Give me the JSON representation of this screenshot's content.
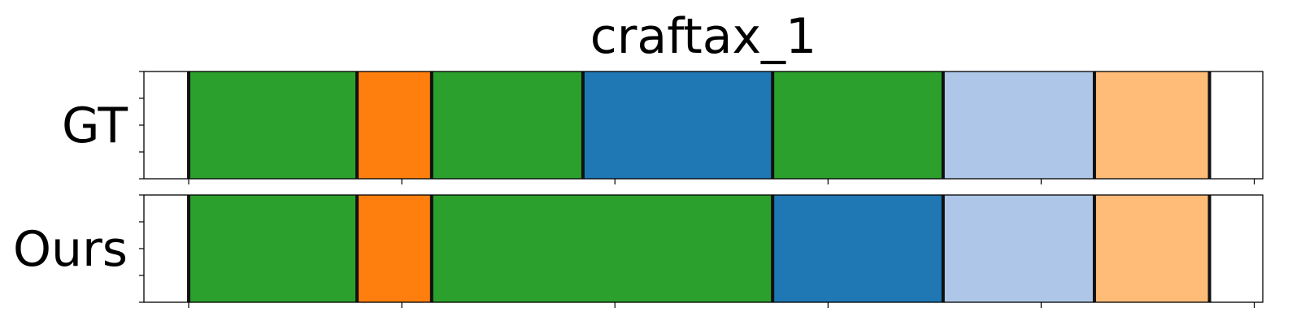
{
  "chart_data": {
    "type": "bar",
    "orientation": "horizontal-segments",
    "title": "craftax_1",
    "rows": [
      {
        "label": "GT",
        "segments": [
          {
            "start": 0.0,
            "end": 0.21,
            "color": "#ffffff"
          },
          {
            "start": 0.21,
            "end": 1.0,
            "color": "#2ca02c"
          },
          {
            "start": 1.0,
            "end": 1.35,
            "color": "#ff7f0e"
          },
          {
            "start": 1.35,
            "end": 2.06,
            "color": "#2ca02c"
          },
          {
            "start": 2.06,
            "end": 2.95,
            "color": "#1f77b4"
          },
          {
            "start": 2.95,
            "end": 3.75,
            "color": "#2ca02c"
          },
          {
            "start": 3.75,
            "end": 4.46,
            "color": "#aec7e8"
          },
          {
            "start": 4.46,
            "end": 5.0,
            "color": "#ffbb78"
          },
          {
            "start": 5.0,
            "end": 5.25,
            "color": "#ffffff"
          }
        ]
      },
      {
        "label": "Ours",
        "segments": [
          {
            "start": 0.0,
            "end": 0.21,
            "color": "#ffffff"
          },
          {
            "start": 0.21,
            "end": 1.0,
            "color": "#2ca02c"
          },
          {
            "start": 1.0,
            "end": 1.35,
            "color": "#ff7f0e"
          },
          {
            "start": 1.35,
            "end": 2.95,
            "color": "#2ca02c"
          },
          {
            "start": 2.95,
            "end": 3.75,
            "color": "#1f77b4"
          },
          {
            "start": 3.75,
            "end": 4.46,
            "color": "#aec7e8"
          },
          {
            "start": 4.46,
            "end": 5.0,
            "color": "#ffbb78"
          },
          {
            "start": 5.0,
            "end": 5.25,
            "color": "#ffffff"
          }
        ]
      }
    ],
    "xlim": [
      0,
      5.25
    ],
    "x_ticks": [
      0.21,
      1.21,
      2.21,
      3.21,
      4.21,
      5.21
    ],
    "x_tick_labels_shown": false,
    "y_ticks_count": 5,
    "y_tick_labels_shown": false,
    "boundary_color": "#111111",
    "grid": false,
    "legend": "none"
  }
}
